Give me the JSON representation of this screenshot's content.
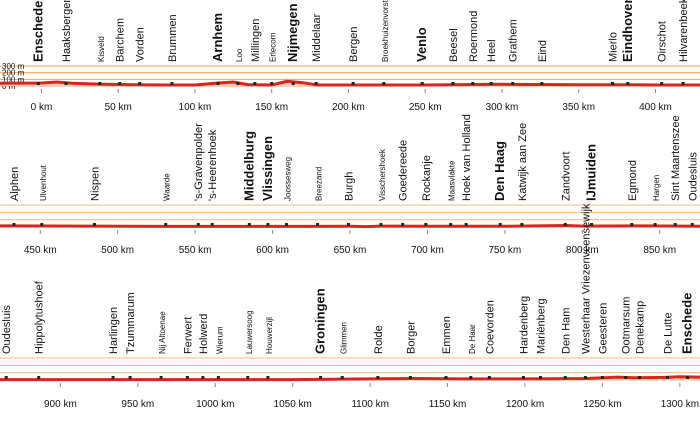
{
  "chart_data": [
    {
      "type": "line",
      "xlim": [
        -27,
        429
      ],
      "xticks": [
        {
          "value": 0,
          "label": "0 km"
        },
        {
          "value": 50,
          "label": "50 km"
        },
        {
          "value": 100,
          "label": "100 km"
        },
        {
          "value": 150,
          "label": "150 km"
        },
        {
          "value": 200,
          "label": "200 km"
        },
        {
          "value": 250,
          "label": "250 km"
        },
        {
          "value": 300,
          "label": "300 km"
        },
        {
          "value": 350,
          "label": "350 km"
        },
        {
          "value": 400,
          "label": "400 km"
        }
      ],
      "ylim": [
        0,
        300
      ],
      "yticks": [
        {
          "value": 300,
          "label": "300 m"
        },
        {
          "value": 200,
          "label": "200 m"
        },
        {
          "value": 100,
          "label": "100 m"
        },
        {
          "value": 0,
          "label": "0 m"
        }
      ],
      "series": [
        {
          "color": "#d7261e",
          "x": [
            -27,
            0,
            10,
            20,
            40,
            60,
            80,
            100,
            115,
            125,
            135,
            150,
            160,
            170,
            180,
            200,
            250,
            300,
            350,
            380,
            400,
            429
          ],
          "values": [
            40,
            45,
            60,
            40,
            25,
            20,
            15,
            15,
            45,
            60,
            20,
            15,
            70,
            50,
            15,
            15,
            15,
            25,
            20,
            20,
            15,
            15
          ]
        }
      ],
      "places": [
        {
          "name": "Enschede",
          "km": -2,
          "style": "major"
        },
        {
          "name": "Haaksbergen",
          "km": 16,
          "style": "normal"
        },
        {
          "name": "Kisveld",
          "km": 38,
          "style": "minor"
        },
        {
          "name": "Barchem",
          "km": 51,
          "style": "normal"
        },
        {
          "name": "Vorden",
          "km": 64,
          "style": "normal"
        },
        {
          "name": "Brummen",
          "km": 85,
          "style": "normal"
        },
        {
          "name": "Arnhem",
          "km": 115,
          "style": "major"
        },
        {
          "name": "Loo",
          "km": 128,
          "style": "minor"
        },
        {
          "name": "Millingen",
          "km": 139,
          "style": "normal"
        },
        {
          "name": "Erlecom",
          "km": 150,
          "style": "minor"
        },
        {
          "name": "Nijmegen",
          "km": 164,
          "style": "major"
        },
        {
          "name": "Middelaar",
          "km": 179,
          "style": "normal"
        },
        {
          "name": "Bergen",
          "km": 203,
          "style": "normal"
        },
        {
          "name": "Broekhuizenvorst",
          "km": 223,
          "style": "minor"
        },
        {
          "name": "Venlo",
          "km": 248,
          "style": "major"
        },
        {
          "name": "Beesel",
          "km": 268,
          "style": "normal"
        },
        {
          "name": "Roermond",
          "km": 281,
          "style": "normal"
        },
        {
          "name": "Heel",
          "km": 293,
          "style": "normal"
        },
        {
          "name": "Grathem",
          "km": 307,
          "style": "normal"
        },
        {
          "name": "Eind",
          "km": 326,
          "style": "normal"
        },
        {
          "name": "Mierlo",
          "km": 372,
          "style": "normal"
        },
        {
          "name": "Eindhoven",
          "km": 382,
          "style": "major"
        },
        {
          "name": "Oirschot",
          "km": 404,
          "style": "normal"
        },
        {
          "name": "Hilvarenbeek",
          "km": 418,
          "style": "normal"
        }
      ]
    },
    {
      "type": "line",
      "xlim": [
        424,
        876
      ],
      "xticks": [
        {
          "value": 450,
          "label": "450 km"
        },
        {
          "value": 500,
          "label": "500 km"
        },
        {
          "value": 550,
          "label": "550 km"
        },
        {
          "value": 600,
          "label": "600 km"
        },
        {
          "value": 650,
          "label": "650 km"
        },
        {
          "value": 700,
          "label": "700 km"
        },
        {
          "value": 750,
          "label": "750 km"
        },
        {
          "value": 800,
          "label": "800 km"
        },
        {
          "value": 850,
          "label": "850 km"
        }
      ],
      "ylim": [
        0,
        300
      ],
      "series": [
        {
          "color": "#d7261e",
          "x": [
            424,
            480,
            530,
            580,
            620,
            650,
            660,
            670,
            700,
            750,
            790,
            800,
            840,
            876
          ],
          "values": [
            15,
            12,
            8,
            8,
            8,
            10,
            5,
            12,
            10,
            10,
            20,
            12,
            15,
            10
          ]
        }
      ],
      "places": [
        {
          "name": "Alphen",
          "km": 433,
          "style": "normal"
        },
        {
          "name": "Ulvenhout",
          "km": 451,
          "style": "minor"
        },
        {
          "name": "Nispen",
          "km": 485,
          "style": "normal"
        },
        {
          "name": "Waarde",
          "km": 531,
          "style": "minor"
        },
        {
          "name": "'s-Gravenpolder",
          "km": 552,
          "style": "normal"
        },
        {
          "name": "'s-Heerenhoek",
          "km": 561,
          "style": "normal"
        },
        {
          "name": "Middelburg",
          "km": 585,
          "style": "major"
        },
        {
          "name": "Vlissingen",
          "km": 597,
          "style": "major"
        },
        {
          "name": "Joossesweg",
          "km": 609,
          "style": "minor"
        },
        {
          "name": "Breezand",
          "km": 629,
          "style": "minor"
        },
        {
          "name": "Burgh",
          "km": 649,
          "style": "normal"
        },
        {
          "name": "Visschershoek",
          "km": 670,
          "style": "minor"
        },
        {
          "name": "Goedereede",
          "km": 684,
          "style": "normal"
        },
        {
          "name": "Rockanje",
          "km": 699,
          "style": "normal"
        },
        {
          "name": "Maasvlakte",
          "km": 715,
          "style": "minor"
        },
        {
          "name": "Hoek van Holland",
          "km": 725,
          "style": "normal"
        },
        {
          "name": "Den Haag",
          "km": 747,
          "style": "major"
        },
        {
          "name": "Katwijk aan Zee",
          "km": 761,
          "style": "normal"
        },
        {
          "name": "Zandvoort",
          "km": 789,
          "style": "normal"
        },
        {
          "name": "IJmuiden",
          "km": 806,
          "style": "major"
        },
        {
          "name": "Egmond",
          "km": 832,
          "style": "normal"
        },
        {
          "name": "Hargen",
          "km": 847,
          "style": "minor"
        },
        {
          "name": "Sint Maartenszee",
          "km": 860,
          "style": "normal"
        },
        {
          "name": "Oudesluis",
          "km": 871,
          "style": "normal"
        }
      ]
    },
    {
      "type": "line",
      "xlim": [
        861,
        1313
      ],
      "xticks": [
        {
          "value": 900,
          "label": "900 km"
        },
        {
          "value": 950,
          "label": "950 km"
        },
        {
          "value": 1000,
          "label": "1000 km"
        },
        {
          "value": 1050,
          "label": "1050 km"
        },
        {
          "value": 1100,
          "label": "1100 km"
        },
        {
          "value": 1150,
          "label": "1150 km"
        },
        {
          "value": 1200,
          "label": "1200 km"
        },
        {
          "value": 1250,
          "label": "1250 km"
        },
        {
          "value": 1300,
          "label": "1300 km"
        }
      ],
      "ylim": [
        0,
        300
      ],
      "series": [
        {
          "color": "#d7261e",
          "x": [
            861,
            900,
            950,
            1000,
            1050,
            1100,
            1130,
            1160,
            1200,
            1240,
            1260,
            1270,
            1290,
            1300,
            1313
          ],
          "values": [
            5,
            5,
            5,
            5,
            5,
            15,
            20,
            15,
            15,
            20,
            40,
            30,
            35,
            45,
            40
          ]
        }
      ],
      "places": [
        {
          "name": "Oudesluis",
          "km": 865,
          "style": "normal"
        },
        {
          "name": "Hippolytushoef",
          "km": 886,
          "style": "normal"
        },
        {
          "name": "Harlingen",
          "km": 934,
          "style": "normal"
        },
        {
          "name": "Tzummarum",
          "km": 945,
          "style": "normal"
        },
        {
          "name": "Nij Altoenae",
          "km": 965,
          "style": "minor"
        },
        {
          "name": "Ferwert",
          "km": 982,
          "style": "normal"
        },
        {
          "name": "Holwerd",
          "km": 992,
          "style": "normal"
        },
        {
          "name": "Wierum",
          "km": 1002,
          "style": "minor"
        },
        {
          "name": "Lauwersoog",
          "km": 1021,
          "style": "minor"
        },
        {
          "name": "Houwerzijl",
          "km": 1034,
          "style": "minor"
        },
        {
          "name": "Groningen",
          "km": 1068,
          "style": "major"
        },
        {
          "name": "Glimmen",
          "km": 1082,
          "style": "minor"
        },
        {
          "name": "Rolde",
          "km": 1105,
          "style": "normal"
        },
        {
          "name": "Borger",
          "km": 1126,
          "style": "normal"
        },
        {
          "name": "Emmen",
          "km": 1149,
          "style": "normal"
        },
        {
          "name": "De Haar",
          "km": 1165,
          "style": "minor"
        },
        {
          "name": "Coevorden",
          "km": 1177,
          "style": "normal"
        },
        {
          "name": "Hardenberg",
          "km": 1199,
          "style": "normal"
        },
        {
          "name": "Mariënberg",
          "km": 1210,
          "style": "normal"
        },
        {
          "name": "Den Ham",
          "km": 1226,
          "style": "normal"
        },
        {
          "name": "Westerhaar Vriezenveensewijk",
          "km": 1239,
          "style": "normal"
        },
        {
          "name": "Geesteren",
          "km": 1250,
          "style": "normal"
        },
        {
          "name": "Ootmarsum",
          "km": 1265,
          "style": "normal"
        },
        {
          "name": "Denekamp",
          "km": 1274,
          "style": "normal"
        },
        {
          "name": "De Lutte",
          "km": 1292,
          "style": "normal"
        },
        {
          "name": "Enschede",
          "km": 1305,
          "style": "major"
        }
      ]
    }
  ]
}
